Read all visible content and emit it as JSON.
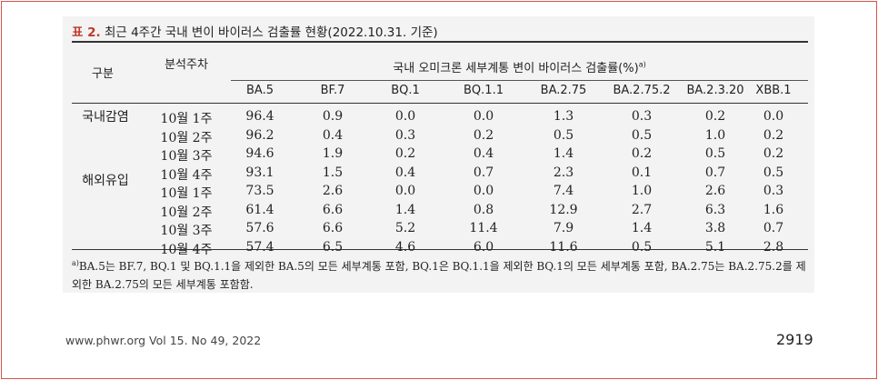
{
  "table": {
    "caption_tag": "표 2.",
    "caption_text": " 최근 4주간 국내 변이 바이러스 검출률 현황(2022.10.31. 기준)",
    "header_group": "구분",
    "header_week": "분석주차",
    "header_span": "국내 오미크론 세부계통 변이 바이러스 검출률(%)",
    "header_span_sup": "a)",
    "columns": [
      "BA.5",
      "BF.7",
      "BQ.1",
      "BQ.1.1",
      "BA.2.75",
      "BA.2.75.2",
      "BA.2.3.20",
      "XBB.1"
    ],
    "groups": [
      "국내감염",
      "해외유입"
    ],
    "rows": [
      {
        "week": "10월 1주",
        "values": [
          "96.4",
          "0.9",
          "0.0",
          "0.0",
          "1.3",
          "0.3",
          "0.2",
          "0.0"
        ]
      },
      {
        "week": "10월 2주",
        "values": [
          "96.2",
          "0.4",
          "0.3",
          "0.2",
          "0.5",
          "0.5",
          "1.0",
          "0.2"
        ]
      },
      {
        "week": "10월 3주",
        "values": [
          "94.6",
          "1.9",
          "0.2",
          "0.4",
          "1.4",
          "0.2",
          "0.5",
          "0.2"
        ]
      },
      {
        "week": "10월 4주",
        "values": [
          "93.1",
          "1.5",
          "0.4",
          "0.7",
          "2.3",
          "0.1",
          "0.7",
          "0.5"
        ]
      },
      {
        "week": "10월 1주",
        "values": [
          "73.5",
          "2.6",
          "0.0",
          "0.0",
          "7.4",
          "1.0",
          "2.6",
          "0.3"
        ]
      },
      {
        "week": "10월 2주",
        "values": [
          "61.4",
          "6.6",
          "1.4",
          "0.8",
          "12.9",
          "2.7",
          "6.3",
          "1.6"
        ]
      },
      {
        "week": "10월 3주",
        "values": [
          "57.6",
          "6.6",
          "5.2",
          "11.4",
          "7.9",
          "1.4",
          "3.8",
          "0.7"
        ]
      },
      {
        "week": "10월 4주",
        "values": [
          "57.4",
          "6.5",
          "4.6",
          "6.0",
          "11.6",
          "0.5",
          "5.1",
          "2.8"
        ]
      }
    ],
    "footnote_sup": "a)",
    "footnote_text": "BA.5는 BF.7, BQ.1 및 BQ.1.1을 제외한 BA.5의 모든 세부계통 포함, BQ.1은 BQ.1.1을 제외한 BQ.1의 모든 세부계통 포함, BA.2.75는 BA.2.75.2를 제외한 BA.2.75의 모든 세부계통 포함함."
  },
  "footer": {
    "left": "www.phwr.org   Vol 15. No 49, 2022",
    "page": "2919"
  },
  "colors": {
    "caption_tag": "#c0392b",
    "frame_border": "#d9534f",
    "table_bg": "#f3f3f3"
  }
}
